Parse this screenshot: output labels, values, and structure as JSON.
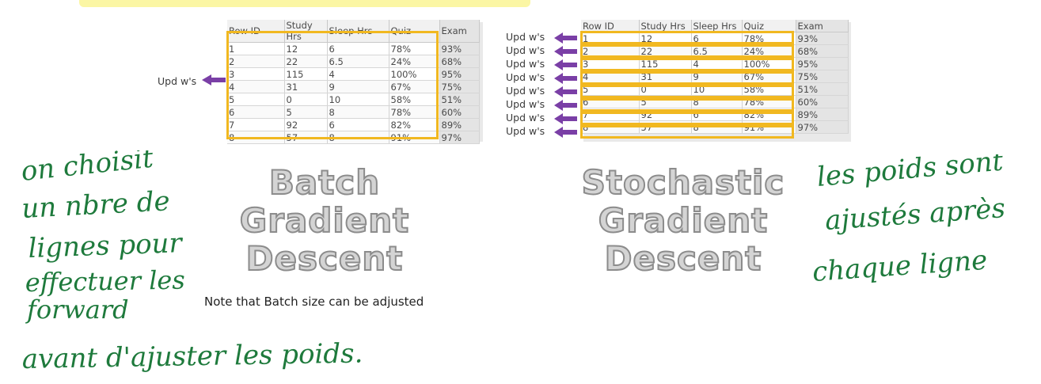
{
  "columns": [
    "Row ID",
    "Study Hrs",
    "Sleep Hrs",
    "Quiz",
    "Exam"
  ],
  "rows": [
    [
      "1",
      "12",
      "6",
      "78%",
      "93%"
    ],
    [
      "2",
      "22",
      "6.5",
      "24%",
      "68%"
    ],
    [
      "3",
      "115",
      "4",
      "100%",
      "95%"
    ],
    [
      "4",
      "31",
      "9",
      "67%",
      "75%"
    ],
    [
      "5",
      "0",
      "10",
      "58%",
      "51%"
    ],
    [
      "6",
      "5",
      "8",
      "78%",
      "60%"
    ],
    [
      "7",
      "92",
      "6",
      "82%",
      "89%"
    ],
    [
      "8",
      "57",
      "8",
      "91%",
      "97%"
    ]
  ],
  "update_label": "Upd w's",
  "batch": {
    "title_lines": [
      "Batch",
      "Gradient",
      "Descent"
    ],
    "update_label": "Upd w's"
  },
  "sgd": {
    "title_lines": [
      "Stochastic",
      "Gradient",
      "Descent"
    ],
    "update_labels": [
      "Upd w's",
      "Upd w's",
      "Upd w's",
      "Upd w's",
      "Upd w's",
      "Upd w's",
      "Upd w's",
      "Upd w's"
    ]
  },
  "note": "Note that Batch size can be adjusted",
  "handwritten_left": [
    "on choisit",
    "un nbre de",
    "lignes pour",
    "effectuer les",
    "forward",
    "avant d'ajuster les poids."
  ],
  "handwritten_right": [
    "les poids sont",
    "ajustés après",
    "chaque ligne"
  ],
  "colors": {
    "highlight_outline": "#f1b820",
    "arrow": "#7a3fa6",
    "handwriting": "#1e7a3c",
    "title_fill": "#d4d4d4",
    "title_stroke": "#8c8c8c",
    "top_highlight": "#fbf6a4"
  },
  "icons": {
    "arrow": "left-arrow-icon"
  }
}
